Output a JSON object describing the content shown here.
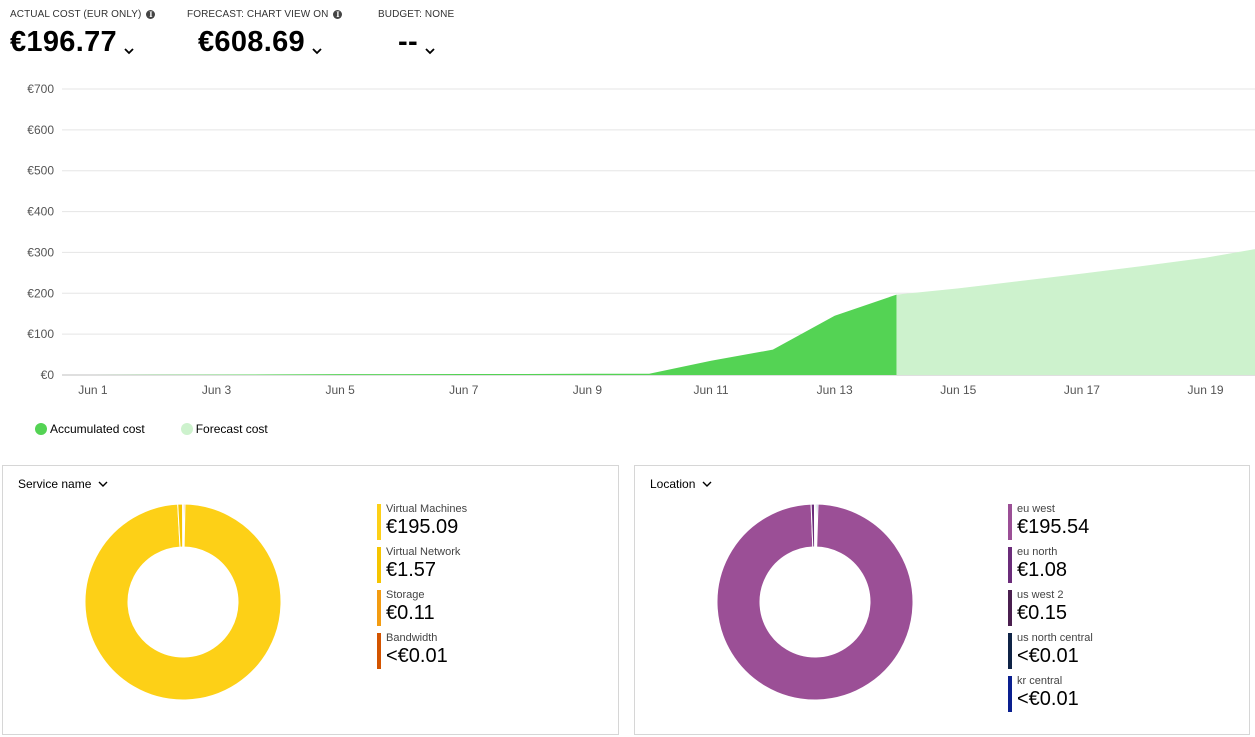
{
  "kpis": {
    "actual": {
      "label": "ACTUAL COST (EUR ONLY)",
      "value": "€196.77"
    },
    "forecast": {
      "label": "FORECAST: CHART VIEW ON",
      "value": "€608.69"
    },
    "budget": {
      "label": "BUDGET: NONE",
      "value": "--"
    }
  },
  "chart_data": {
    "type": "area",
    "title": "",
    "xlabel": "",
    "ylabel": "",
    "ylim": [
      0,
      700
    ],
    "y_ticks": [
      "€0",
      "€100",
      "€200",
      "€300",
      "€400",
      "€500",
      "€600",
      "€700"
    ],
    "y_tick_values": [
      0,
      100,
      200,
      300,
      400,
      500,
      600,
      700
    ],
    "x_ticks": [
      "Jun 1",
      "Jun 3",
      "Jun 5",
      "Jun 7",
      "Jun 9",
      "Jun 11",
      "Jun 13",
      "Jun 15",
      "Jun 17",
      "Jun 19"
    ],
    "x_tick_days": [
      1,
      3,
      5,
      7,
      9,
      11,
      13,
      15,
      17,
      19
    ],
    "x_range": [
      0.5,
      19.8
    ],
    "series": [
      {
        "name": "Accumulated cost",
        "color": "#54d354",
        "points": [
          [
            1,
            0
          ],
          [
            2,
            0.5
          ],
          [
            3,
            1
          ],
          [
            4,
            1.5
          ],
          [
            5,
            2
          ],
          [
            6,
            2
          ],
          [
            7,
            2.5
          ],
          [
            8,
            2.5
          ],
          [
            9,
            3
          ],
          [
            10,
            3
          ],
          [
            11,
            35
          ],
          [
            12,
            62
          ],
          [
            13,
            145
          ],
          [
            14,
            196.77
          ]
        ]
      },
      {
        "name": "Forecast cost",
        "color": "#cdf2cd",
        "points": [
          [
            14,
            196.77
          ],
          [
            15,
            212
          ],
          [
            16,
            230
          ],
          [
            17,
            248
          ],
          [
            18,
            267
          ],
          [
            19,
            287
          ],
          [
            19.8,
            308
          ]
        ]
      }
    ]
  },
  "legend": [
    {
      "label": "Accumulated cost",
      "color": "#54d354"
    },
    {
      "label": "Forecast cost",
      "color": "#cdf2cd"
    }
  ],
  "service_panel": {
    "header": "Service name",
    "items": [
      {
        "label": "Virtual Machines",
        "value": "€195.09",
        "amount": 195.09,
        "color": "#fdd017"
      },
      {
        "label": "Virtual Network",
        "value": "€1.57",
        "amount": 1.57,
        "color": "#f5c400"
      },
      {
        "label": "Storage",
        "value": "€0.11",
        "amount": 0.11,
        "color": "#f39c12"
      },
      {
        "label": "Bandwidth",
        "value": "<€0.01",
        "amount": 0.005,
        "color": "#d35400"
      }
    ]
  },
  "location_panel": {
    "header": "Location",
    "items": [
      {
        "label": "eu west",
        "value": "€195.54",
        "amount": 195.54,
        "color": "#9b4f96"
      },
      {
        "label": "eu north",
        "value": "€1.08",
        "amount": 1.08,
        "color": "#6b2c7a"
      },
      {
        "label": "us west 2",
        "value": "€0.15",
        "amount": 0.15,
        "color": "#4a1f4f"
      },
      {
        "label": "us north central",
        "value": "<€0.01",
        "amount": 0.005,
        "color": "#0f2346"
      },
      {
        "label": "kr central",
        "value": "<€0.01",
        "amount": 0.005,
        "color": "#0a1f8f"
      }
    ]
  },
  "icons": {
    "info": "info-icon",
    "dropdown": "chevron-down-icon"
  }
}
